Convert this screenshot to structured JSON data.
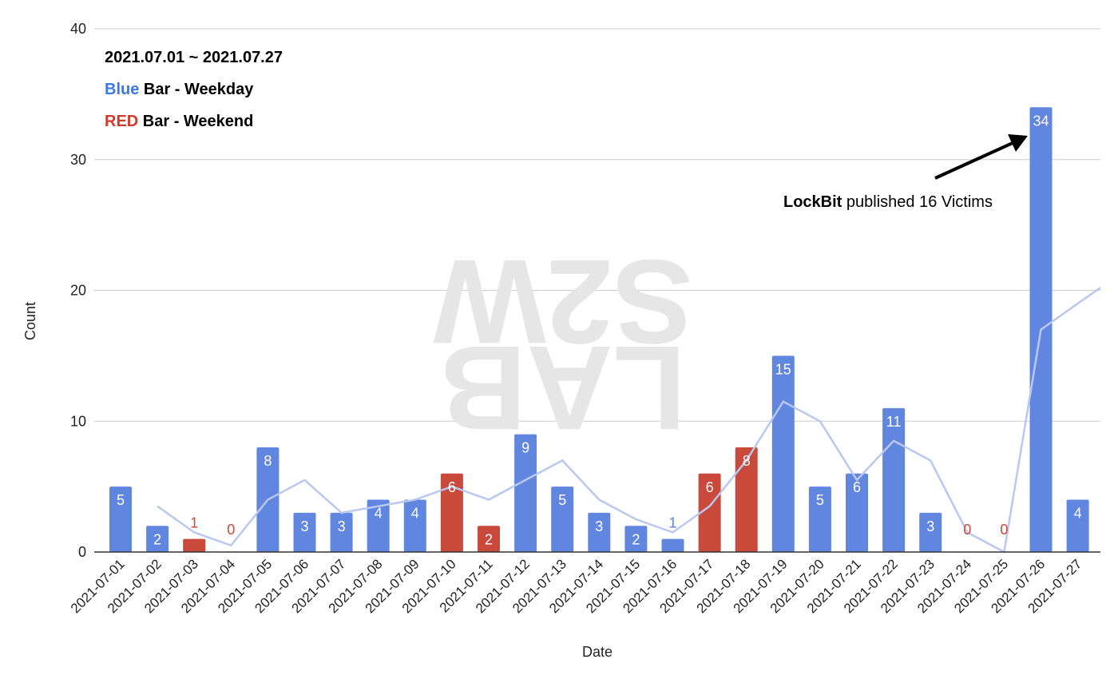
{
  "watermark": {
    "line1": "S2W",
    "line2": "LAB"
  },
  "annotation": {
    "bold": "LockBit",
    "rest": " published 16 Victims"
  },
  "legend": {
    "date_range": "2021.07.01 ~ 2021.07.27",
    "blue_word": "Blue",
    "blue_rest": " Bar - Weekday",
    "red_word": "RED",
    "red_rest": " Bar - Weekend"
  },
  "chart_data": {
    "type": "bar",
    "title": "",
    "xlabel": "Date",
    "ylabel": "Count",
    "ylim": [
      0,
      40
    ],
    "yticks": [
      0,
      10,
      20,
      30,
      40
    ],
    "grid": true,
    "categories": [
      "2021-07-01",
      "2021-07-02",
      "2021-07-03",
      "2021-07-04",
      "2021-07-05",
      "2021-07-06",
      "2021-07-07",
      "2021-07-08",
      "2021-07-09",
      "2021-07-10",
      "2021-07-11",
      "2021-07-12",
      "2021-07-13",
      "2021-07-14",
      "2021-07-15",
      "2021-07-16",
      "2021-07-17",
      "2021-07-18",
      "2021-07-19",
      "2021-07-20",
      "2021-07-21",
      "2021-07-22",
      "2021-07-23",
      "2021-07-24",
      "2021-07-25",
      "2021-07-26",
      "2021-07-27"
    ],
    "values": [
      5,
      2,
      1,
      0,
      8,
      3,
      3,
      4,
      4,
      6,
      2,
      9,
      5,
      3,
      2,
      1,
      6,
      8,
      15,
      5,
      6,
      11,
      3,
      0,
      0,
      34,
      4
    ],
    "weekend": [
      false,
      false,
      true,
      true,
      false,
      false,
      false,
      false,
      false,
      true,
      true,
      false,
      false,
      false,
      false,
      false,
      true,
      true,
      false,
      false,
      false,
      false,
      false,
      true,
      true,
      false,
      false
    ],
    "colors": {
      "weekday": "#6186e0",
      "weekend": "#c9493a",
      "trend": "#b8c8f0",
      "grid": "#cccccc",
      "axis": "#333333"
    },
    "trendline": {
      "type": "moving-average",
      "period": 2
    }
  }
}
